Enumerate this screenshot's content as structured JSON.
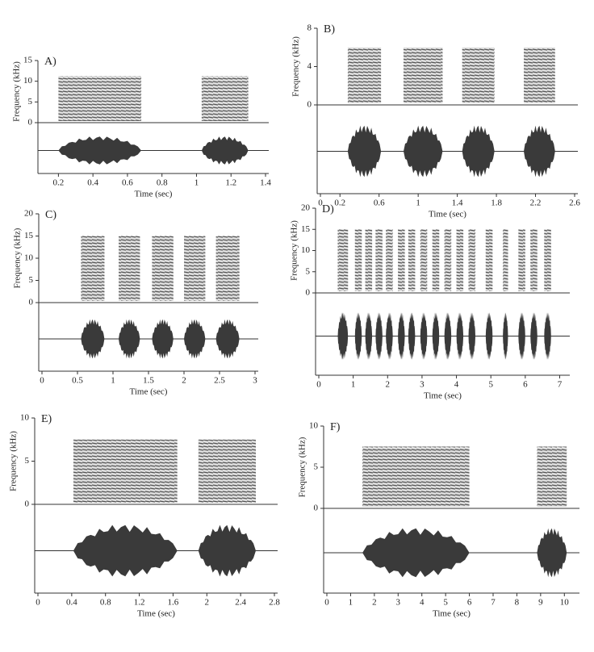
{
  "chart_data": [
    {
      "type": "spectrogram",
      "panel": "A)",
      "ylabel": "Frequency (kHz)",
      "xlabel": "Time (sec)",
      "xlim": [
        0.1,
        1.4
      ],
      "xticks": [
        0.2,
        0.4,
        0.6,
        0.8,
        1.0,
        1.2,
        1.4
      ],
      "ylim": [
        0,
        15
      ],
      "yticks": [
        0,
        5,
        10,
        15
      ],
      "segments": [
        [
          0.2,
          0.68
        ],
        [
          1.03,
          1.3
        ]
      ]
    },
    {
      "type": "spectrogram",
      "panel": "B)",
      "ylabel": "Frequency (kHz)",
      "xlabel": "Time (sec)",
      "xlim": [
        0,
        2.6
      ],
      "xticks": [
        0,
        0.2,
        0.6,
        1.0,
        1.4,
        1.8,
        2.2,
        2.6
      ],
      "ylim": [
        0,
        8
      ],
      "yticks": [
        0,
        4,
        8
      ],
      "segments": [
        [
          0.28,
          0.62
        ],
        [
          0.85,
          1.25
        ],
        [
          1.45,
          1.78
        ],
        [
          2.08,
          2.4
        ]
      ]
    },
    {
      "type": "spectrogram",
      "panel": "C)",
      "ylabel": "Frequency (kHz)",
      "xlabel": "Time (sec)",
      "xlim": [
        0,
        3.0
      ],
      "xticks": [
        0,
        0.5,
        1.0,
        1.5,
        2.0,
        2.5,
        3.0
      ],
      "ylim": [
        0,
        20
      ],
      "yticks": [
        0,
        5,
        10,
        15,
        20
      ],
      "segments": [
        [
          0.55,
          0.88
        ],
        [
          1.08,
          1.38
        ],
        [
          1.55,
          1.85
        ],
        [
          2.0,
          2.3
        ],
        [
          2.45,
          2.78
        ]
      ]
    },
    {
      "type": "spectrogram",
      "panel": "D)",
      "ylabel": "Frequency (kHz)",
      "xlabel": "Time (sec)",
      "xlim": [
        0,
        7.2
      ],
      "xticks": [
        0,
        1,
        2,
        3,
        4,
        5,
        6,
        7
      ],
      "ylim": [
        0,
        20
      ],
      "yticks": [
        0,
        5,
        10,
        15,
        20
      ],
      "segments": [
        [
          0.55,
          0.85
        ],
        [
          1.05,
          1.25
        ],
        [
          1.35,
          1.55
        ],
        [
          1.65,
          1.85
        ],
        [
          1.95,
          2.15
        ],
        [
          2.3,
          2.5
        ],
        [
          2.6,
          2.8
        ],
        [
          2.95,
          3.15
        ],
        [
          3.3,
          3.5
        ],
        [
          3.65,
          3.85
        ],
        [
          4.0,
          4.2
        ],
        [
          4.35,
          4.55
        ],
        [
          4.85,
          5.05
        ],
        [
          5.35,
          5.5
        ],
        [
          5.8,
          6.0
        ],
        [
          6.15,
          6.35
        ],
        [
          6.55,
          6.75
        ]
      ]
    },
    {
      "type": "spectrogram",
      "panel": "E)",
      "ylabel": "Frequency (kHz)",
      "xlabel": "Time (sec)",
      "xlim": [
        0,
        2.8
      ],
      "xticks": [
        0,
        0.4,
        0.8,
        1.2,
        1.6,
        2.0,
        2.4,
        2.8
      ],
      "ylim": [
        0,
        10
      ],
      "yticks": [
        0,
        5,
        10
      ],
      "segments": [
        [
          0.42,
          1.65
        ],
        [
          1.9,
          2.58
        ]
      ]
    },
    {
      "type": "spectrogram",
      "panel": "F)",
      "ylabel": "Frequency (kHz)",
      "xlabel": "Time (sec)",
      "xlim": [
        0,
        10.5
      ],
      "xticks": [
        0,
        1,
        2,
        3,
        4,
        5,
        6,
        7,
        8,
        9,
        10
      ],
      "ylim": [
        0,
        10
      ],
      "yticks": [
        0,
        5,
        10
      ],
      "segments": [
        [
          1.5,
          6.0
        ],
        [
          8.85,
          10.1
        ]
      ]
    }
  ]
}
